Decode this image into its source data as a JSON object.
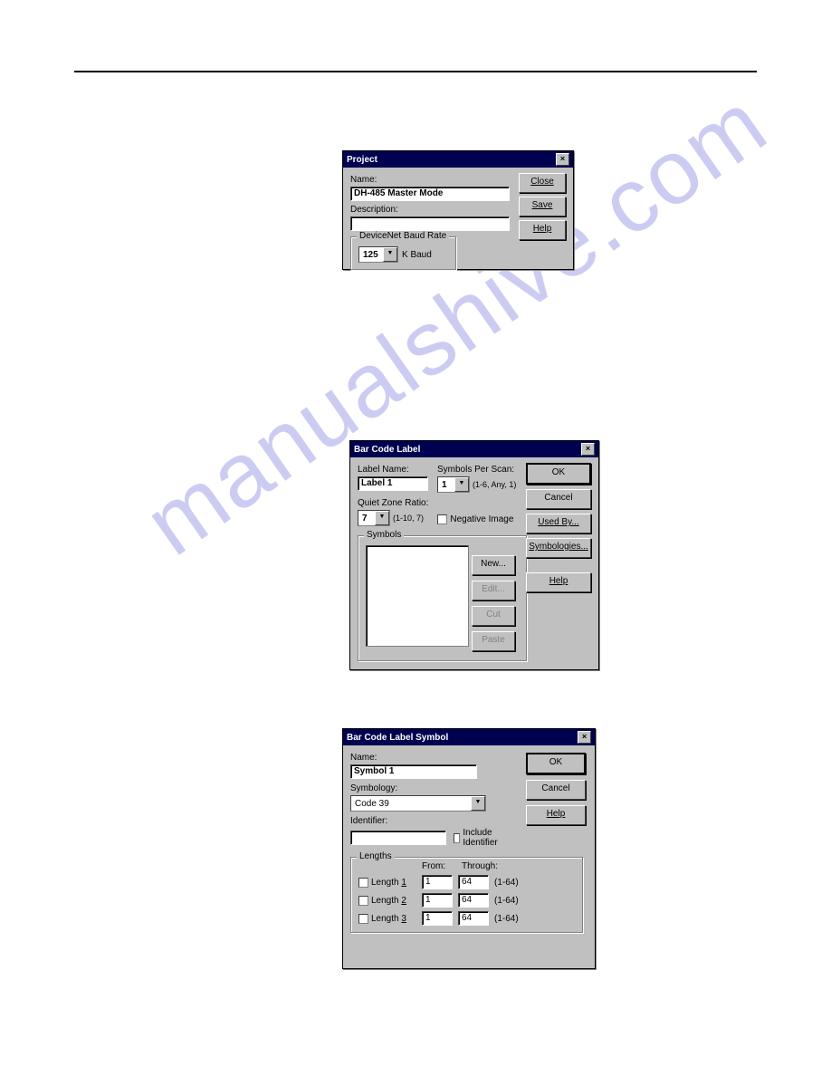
{
  "watermark": "manualshive.com",
  "dialog1": {
    "title": "Project",
    "name_label": "Name:",
    "name_value": "DH-485 Master Mode",
    "description_label": "Description:",
    "description_value": "",
    "baud_group": "DeviceNet Baud Rate",
    "baud_value": "125",
    "baud_unit": "K Baud",
    "buttons": {
      "close": "Close",
      "save": "Save",
      "help": "Help"
    }
  },
  "dialog2": {
    "title": "Bar Code Label",
    "label_name_label": "Label Name:",
    "label_name_value": "Label 1",
    "symbols_per_scan_label": "Symbols Per Scan:",
    "symbols_per_scan_value": "1",
    "symbols_per_scan_hint": "(1-6, Any, 1)",
    "quiet_zone_label": "Quiet Zone Ratio:",
    "quiet_zone_value": "7",
    "quiet_zone_hint": "(1-10, 7)",
    "negative_image": "Negative Image",
    "symbols_group": "Symbols",
    "sym_buttons": {
      "new": "New...",
      "edit": "Edit...",
      "cut": "Cut",
      "paste": "Paste"
    },
    "buttons": {
      "ok": "OK",
      "cancel": "Cancel",
      "usedby": "Used By...",
      "symbologies": "Symbologies...",
      "help": "Help"
    }
  },
  "dialog3": {
    "title": "Bar Code Label Symbol",
    "name_label": "Name:",
    "name_value": "Symbol 1",
    "symbology_label": "Symbology:",
    "symbology_value": "Code 39",
    "identifier_label": "Identifier:",
    "identifier_value": "",
    "include_identifier": "Include Identifier",
    "lengths_group": "Lengths",
    "from_label": "From:",
    "through_label": "Through:",
    "range_hint": "(1-64)",
    "rows": [
      {
        "label": "Length 1",
        "from": "1",
        "through": "64"
      },
      {
        "label": "Length 2",
        "from": "1",
        "through": "64"
      },
      {
        "label": "Length 3",
        "from": "1",
        "through": "64"
      }
    ],
    "buttons": {
      "ok": "OK",
      "cancel": "Cancel",
      "help": "Help"
    }
  }
}
